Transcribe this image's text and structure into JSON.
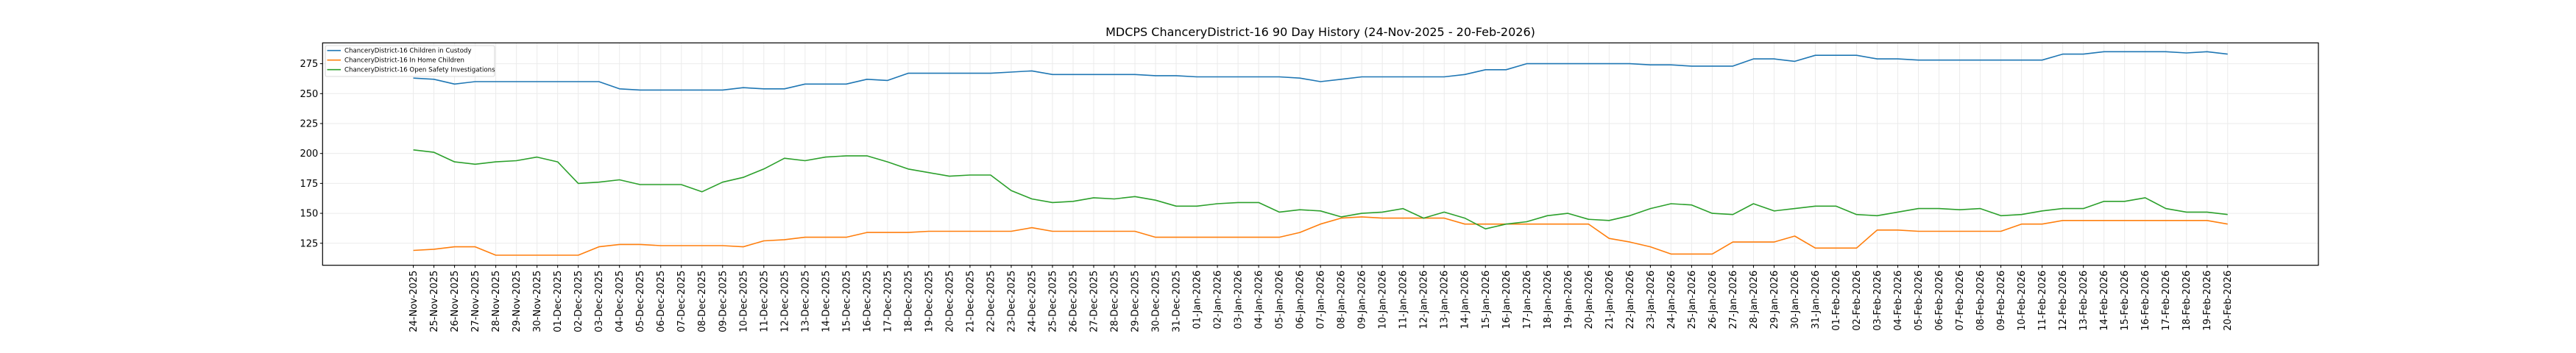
{
  "chart_data": {
    "type": "line",
    "title": "MDCPS ChanceryDistrict-16 90 Day History (24-Nov-2025 - 20-Feb-2026)",
    "xlabel": "",
    "ylabel": "",
    "grid": true,
    "legend_position": "top-left",
    "ylim": [
      106.6,
      292.4
    ],
    "xlim": [
      -4.4,
      92.4
    ],
    "yticks": [
      125,
      150,
      175,
      200,
      225,
      250,
      275
    ],
    "x": [
      "24-Nov-2025",
      "25-Nov-2025",
      "26-Nov-2025",
      "27-Nov-2025",
      "28-Nov-2025",
      "29-Nov-2025",
      "30-Nov-2025",
      "01-Dec-2025",
      "02-Dec-2025",
      "03-Dec-2025",
      "04-Dec-2025",
      "05-Dec-2025",
      "06-Dec-2025",
      "07-Dec-2025",
      "08-Dec-2025",
      "09-Dec-2025",
      "10-Dec-2025",
      "11-Dec-2025",
      "12-Dec-2025",
      "13-Dec-2025",
      "14-Dec-2025",
      "15-Dec-2025",
      "16-Dec-2025",
      "17-Dec-2025",
      "18-Dec-2025",
      "19-Dec-2025",
      "20-Dec-2025",
      "21-Dec-2025",
      "22-Dec-2025",
      "23-Dec-2025",
      "24-Dec-2025",
      "25-Dec-2025",
      "26-Dec-2025",
      "27-Dec-2025",
      "28-Dec-2025",
      "29-Dec-2025",
      "30-Dec-2025",
      "31-Dec-2025",
      "01-Jan-2026",
      "02-Jan-2026",
      "03-Jan-2026",
      "04-Jan-2026",
      "05-Jan-2026",
      "06-Jan-2026",
      "07-Jan-2026",
      "08-Jan-2026",
      "09-Jan-2026",
      "10-Jan-2026",
      "11-Jan-2026",
      "12-Jan-2026",
      "13-Jan-2026",
      "14-Jan-2026",
      "15-Jan-2026",
      "16-Jan-2026",
      "17-Jan-2026",
      "18-Jan-2026",
      "19-Jan-2026",
      "20-Jan-2026",
      "21-Jan-2026",
      "22-Jan-2026",
      "23-Jan-2026",
      "24-Jan-2026",
      "25-Jan-2026",
      "26-Jan-2026",
      "27-Jan-2026",
      "28-Jan-2026",
      "29-Jan-2026",
      "30-Jan-2026",
      "31-Jan-2026",
      "01-Feb-2026",
      "02-Feb-2026",
      "03-Feb-2026",
      "04-Feb-2026",
      "05-Feb-2026",
      "06-Feb-2026",
      "07-Feb-2026",
      "08-Feb-2026",
      "09-Feb-2026",
      "10-Feb-2026",
      "11-Feb-2026",
      "12-Feb-2026",
      "13-Feb-2026",
      "14-Feb-2026",
      "15-Feb-2026",
      "16-Feb-2026",
      "17-Feb-2026",
      "18-Feb-2026",
      "19-Feb-2026",
      "20-Feb-2026"
    ],
    "series": [
      {
        "name": "ChanceryDistrict-16 Children in Custody",
        "color": "#1f77b4",
        "values": [
          263,
          262,
          258,
          260,
          260,
          260,
          260,
          260,
          260,
          260,
          254,
          253,
          253,
          253,
          253,
          253,
          255,
          254,
          254,
          258,
          258,
          258,
          262,
          261,
          267,
          267,
          267,
          267,
          267,
          268,
          269,
          266,
          266,
          266,
          266,
          266,
          265,
          265,
          264,
          264,
          264,
          264,
          264,
          263,
          260,
          262,
          264,
          264,
          264,
          264,
          264,
          266,
          270,
          270,
          275,
          275,
          275,
          275,
          275,
          275,
          274,
          274,
          273,
          273,
          273,
          279,
          279,
          277,
          282,
          282,
          282,
          279,
          279,
          278,
          278,
          278,
          278,
          278,
          278,
          278,
          283,
          283,
          285,
          285,
          285,
          285,
          284,
          285,
          283
        ]
      },
      {
        "name": "ChanceryDistrict-16 In Home Children",
        "color": "#ff7f0e",
        "values": [
          119,
          120,
          122,
          122,
          115,
          115,
          115,
          115,
          115,
          122,
          124,
          124,
          123,
          123,
          123,
          123,
          122,
          127,
          128,
          130,
          130,
          130,
          134,
          134,
          134,
          135,
          135,
          135,
          135,
          135,
          138,
          135,
          135,
          135,
          135,
          135,
          130,
          130,
          130,
          130,
          130,
          130,
          130,
          134,
          141,
          146,
          147,
          146,
          146,
          146,
          146,
          141,
          141,
          141,
          141,
          141,
          141,
          141,
          129,
          126,
          122,
          116,
          116,
          116,
          126,
          126,
          126,
          131,
          121,
          121,
          121,
          136,
          136,
          135,
          135,
          135,
          135,
          135,
          141,
          141,
          144,
          144,
          144,
          144,
          144,
          144,
          144,
          144,
          141
        ]
      },
      {
        "name": "ChanceryDistrict-16 Open Safety Investigations",
        "color": "#2ca02c",
        "values": [
          203,
          201,
          193,
          191,
          193,
          194,
          197,
          193,
          175,
          176,
          178,
          174,
          174,
          174,
          168,
          176,
          180,
          187,
          196,
          194,
          197,
          198,
          198,
          193,
          187,
          184,
          181,
          182,
          182,
          169,
          162,
          159,
          160,
          163,
          162,
          164,
          161,
          156,
          156,
          158,
          159,
          159,
          151,
          153,
          152,
          147,
          150,
          151,
          154,
          146,
          151,
          146,
          137,
          141,
          143,
          148,
          150,
          145,
          144,
          148,
          154,
          158,
          157,
          150,
          149,
          158,
          152,
          154,
          156,
          156,
          149,
          148,
          151,
          154,
          154,
          153,
          154,
          148,
          149,
          152,
          154,
          154,
          160,
          160,
          163,
          154,
          151,
          151,
          149
        ]
      }
    ]
  }
}
